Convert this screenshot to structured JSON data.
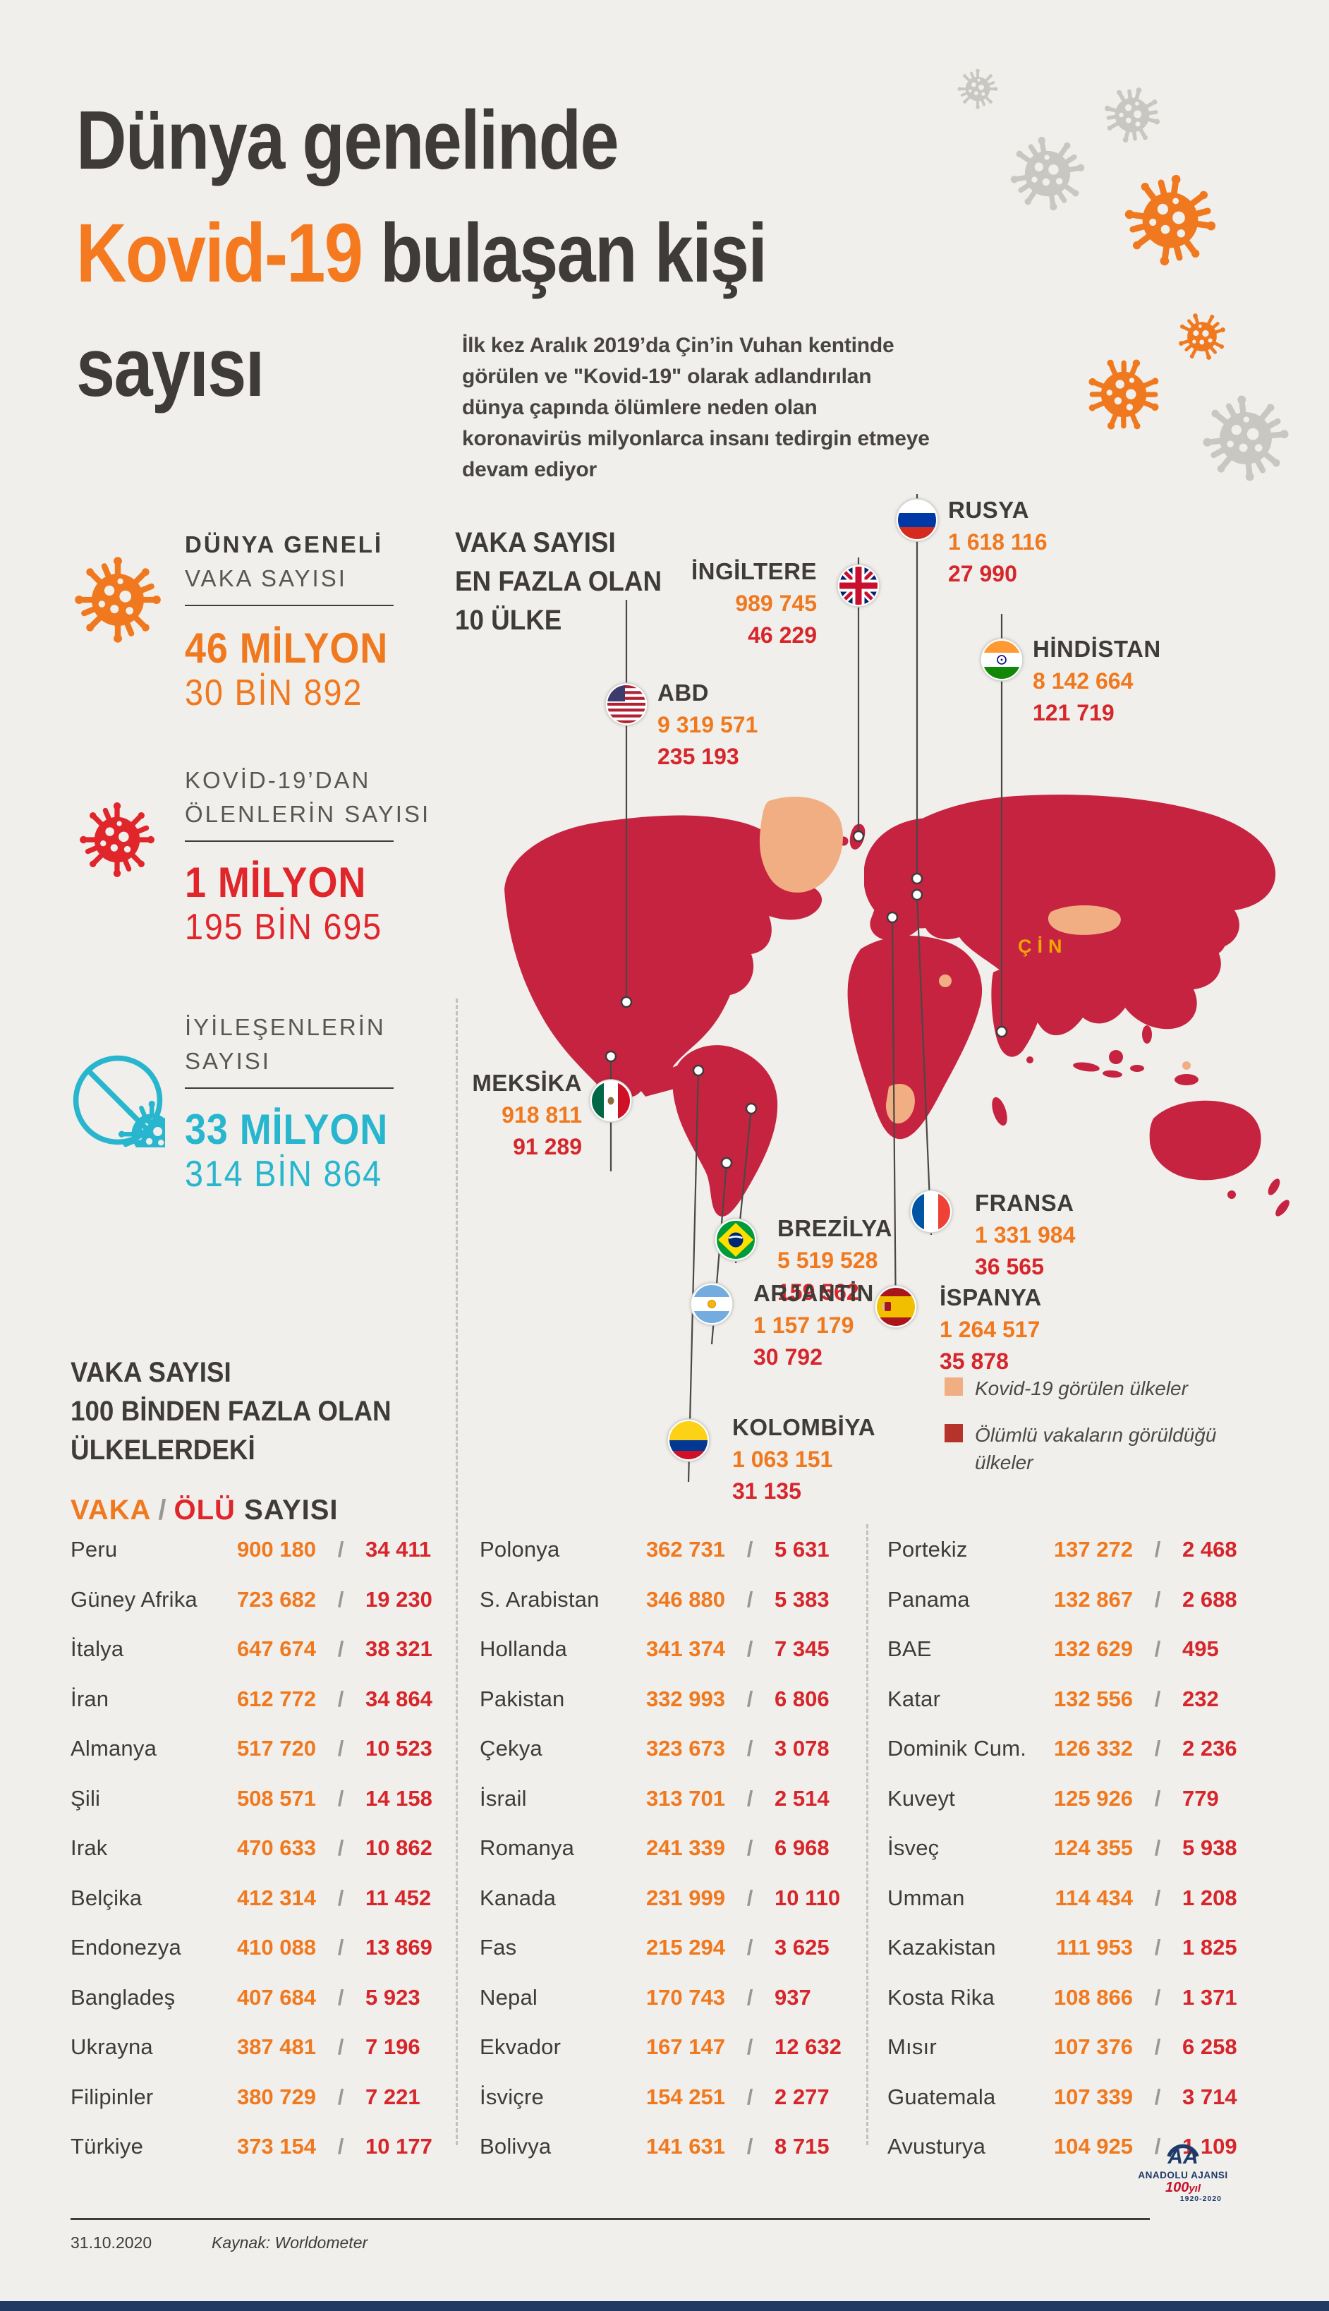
{
  "palette": {
    "background": "#F0EFEB",
    "orange": "#F0791F",
    "red": "#E0252B",
    "deaths_red": "#D6262B",
    "teal": "#27B6CE",
    "map_red": "#C62340",
    "peach": "#F2AE83",
    "legend_dark_red": "#B5332A",
    "navy": "#1E3A68",
    "dark_text": "#3E3B39"
  },
  "header": {
    "title_line1": "Dünya genelinde",
    "title_highlight": "Kovid-19",
    "title_rest": " bulaşan kişi",
    "title_line3": "sayısı",
    "intro": "İlk kez Aralık 2019’da Çin’in Vuhan kentinde görülen ve \"Kovid-19\" olarak adlandırılan dünya çapında ölümlere neden olan koronavirüs milyonlarca insanı tedirgin etmeye devam ediyor"
  },
  "stats": {
    "cases": {
      "label_line1": "DÜNYA GENELİ",
      "label_line2": "VAKA SAYISI",
      "value_major": "46 MİLYON",
      "value_minor": "30 BİN 892"
    },
    "deaths": {
      "label_line1": "KOVİD-19’DAN",
      "label_line2": "ÖLENLERİN SAYISI",
      "value_major": "1 MİLYON",
      "value_minor": "195 BİN 695"
    },
    "recovered": {
      "label_line1": "İYİLEŞENLERİN",
      "label_line2": "SAYISI",
      "value_major": "33 MİLYON",
      "value_minor": "314 BİN 864"
    }
  },
  "map": {
    "heading_line1": "VAKA SAYISI",
    "heading_line2": "EN FAZLA OLAN",
    "heading_line3": "10 ÜLKE",
    "china_label": "ÇİN",
    "legend": {
      "seen": "Kovid-19 görülen ülkeler",
      "deadly": "Ölümlü vakaların görüldüğü ülkeler"
    },
    "countries": [
      {
        "name": "ABD",
        "cases": "9 319 571",
        "deaths": "235 193"
      },
      {
        "name": "İNGİLTERE",
        "cases": "989 745",
        "deaths": "46 229"
      },
      {
        "name": "RUSYA",
        "cases": "1 618 116",
        "deaths": "27 990"
      },
      {
        "name": "HİNDİSTAN",
        "cases": "8 142 664",
        "deaths": "121 719"
      },
      {
        "name": "MEKSİKA",
        "cases": "918 811",
        "deaths": "91 289"
      },
      {
        "name": "BREZİLYA",
        "cases": "5 519 528",
        "deaths": "159 562"
      },
      {
        "name": "FRANSA",
        "cases": "1 331 984",
        "deaths": "36 565"
      },
      {
        "name": "ARJANTİN",
        "cases": "1 157 179",
        "deaths": "30 792"
      },
      {
        "name": "İSPANYA",
        "cases": "1 264 517",
        "deaths": "35 878"
      },
      {
        "name": "KOLOMBİYA",
        "cases": "1 063 151",
        "deaths": "31 135"
      }
    ]
  },
  "table": {
    "heading_line1": "VAKA SAYISI",
    "heading_line2": "100 BİNDEN FAZLA OLAN",
    "heading_line3": "ÜLKELERDEKİ",
    "legend": {
      "cases": "VAKA",
      "sep": "/",
      "deaths": "ÖLÜ",
      "suffix": "SAYISI"
    },
    "slash": "/",
    "columns": [
      [
        {
          "country": "Peru",
          "cases": "900 180",
          "deaths": "34 411"
        },
        {
          "country": "Güney Afrika",
          "cases": "723 682",
          "deaths": "19 230"
        },
        {
          "country": "İtalya",
          "cases": "647 674",
          "deaths": "38 321"
        },
        {
          "country": "İran",
          "cases": "612 772",
          "deaths": "34 864"
        },
        {
          "country": "Almanya",
          "cases": "517 720",
          "deaths": "10 523"
        },
        {
          "country": "Şili",
          "cases": "508 571",
          "deaths": "14 158"
        },
        {
          "country": "Irak",
          "cases": "470 633",
          "deaths": "10 862"
        },
        {
          "country": "Belçika",
          "cases": "412 314",
          "deaths": "11 452"
        },
        {
          "country": "Endonezya",
          "cases": "410 088",
          "deaths": "13 869"
        },
        {
          "country": "Bangladeş",
          "cases": "407 684",
          "deaths": "5 923"
        },
        {
          "country": "Ukrayna",
          "cases": "387 481",
          "deaths": "7 196"
        },
        {
          "country": "Filipinler",
          "cases": "380 729",
          "deaths": "7 221"
        },
        {
          "country": "Türkiye",
          "cases": "373 154",
          "deaths": "10 177"
        }
      ],
      [
        {
          "country": "Polonya",
          "cases": "362 731",
          "deaths": "5 631"
        },
        {
          "country": "S. Arabistan",
          "cases": "346 880",
          "deaths": "5 383"
        },
        {
          "country": "Hollanda",
          "cases": "341 374",
          "deaths": "7 345"
        },
        {
          "country": "Pakistan",
          "cases": "332 993",
          "deaths": "6 806"
        },
        {
          "country": "Çekya",
          "cases": "323 673",
          "deaths": "3 078"
        },
        {
          "country": "İsrail",
          "cases": "313 701",
          "deaths": "2 514"
        },
        {
          "country": "Romanya",
          "cases": "241 339",
          "deaths": "6 968"
        },
        {
          "country": "Kanada",
          "cases": "231 999",
          "deaths": "10 110"
        },
        {
          "country": "Fas",
          "cases": "215 294",
          "deaths": "3 625"
        },
        {
          "country": "Nepal",
          "cases": "170 743",
          "deaths": "937"
        },
        {
          "country": "Ekvador",
          "cases": "167 147",
          "deaths": "12 632"
        },
        {
          "country": "İsviçre",
          "cases": "154 251",
          "deaths": "2 277"
        },
        {
          "country": "Bolivya",
          "cases": "141 631",
          "deaths": "8 715"
        }
      ],
      [
        {
          "country": "Portekiz",
          "cases": "137 272",
          "deaths": "2 468"
        },
        {
          "country": "Panama",
          "cases": "132 867",
          "deaths": "2 688"
        },
        {
          "country": "BAE",
          "cases": "132 629",
          "deaths": "495"
        },
        {
          "country": "Katar",
          "cases": "132 556",
          "deaths": "232"
        },
        {
          "country": "Dominik Cum.",
          "cases": "126 332",
          "deaths": "2 236"
        },
        {
          "country": "Kuveyt",
          "cases": "125 926",
          "deaths": "779"
        },
        {
          "country": "İsveç",
          "cases": "124 355",
          "deaths": "5 938"
        },
        {
          "country": "Umman",
          "cases": "114 434",
          "deaths": "1 208"
        },
        {
          "country": "Kazakistan",
          "cases": "111 953",
          "deaths": "1 825"
        },
        {
          "country": "Kosta Rika",
          "cases": "108 866",
          "deaths": "1 371"
        },
        {
          "country": "Mısır",
          "cases": "107 376",
          "deaths": "6 258"
        },
        {
          "country": "Guatemala",
          "cases": "107 339",
          "deaths": "3 714"
        },
        {
          "country": "Avusturya",
          "cases": "104 925",
          "deaths": "1 109"
        }
      ]
    ]
  },
  "footer": {
    "date": "31.10.2020",
    "source": "Kaynak: Worldometer",
    "agency": "ANADOLU AJANSI",
    "centennial": "100",
    "centennial_suffix": "yıl",
    "years": "1920-2020"
  },
  "chart_data": {
    "type": "table",
    "title": "Dünya genelinde Kovid-19 bulaşan kişi sayısı",
    "date": "31.10.2020",
    "source": "Worldometer",
    "totals": {
      "cases": 46030892,
      "deaths": 1195695,
      "recovered": 33314864
    },
    "top10_countries": [
      {
        "country": "ABD",
        "cases": 9319571,
        "deaths": 235193
      },
      {
        "country": "Hindistan",
        "cases": 8142664,
        "deaths": 121719
      },
      {
        "country": "Brezilya",
        "cases": 5519528,
        "deaths": 159562
      },
      {
        "country": "Rusya",
        "cases": 1618116,
        "deaths": 27990
      },
      {
        "country": "Fransa",
        "cases": 1331984,
        "deaths": 36565
      },
      {
        "country": "İspanya",
        "cases": 1264517,
        "deaths": 35878
      },
      {
        "country": "Arjantin",
        "cases": 1157179,
        "deaths": 30792
      },
      {
        "country": "Kolombiya",
        "cases": 1063151,
        "deaths": 31135
      },
      {
        "country": "İngiltere",
        "cases": 989745,
        "deaths": 46229
      },
      {
        "country": "Meksika",
        "cases": 918811,
        "deaths": 91289
      }
    ],
    "countries_over_100k": [
      {
        "country": "Peru",
        "cases": 900180,
        "deaths": 34411
      },
      {
        "country": "Güney Afrika",
        "cases": 723682,
        "deaths": 19230
      },
      {
        "country": "İtalya",
        "cases": 647674,
        "deaths": 38321
      },
      {
        "country": "İran",
        "cases": 612772,
        "deaths": 34864
      },
      {
        "country": "Almanya",
        "cases": 517720,
        "deaths": 10523
      },
      {
        "country": "Şili",
        "cases": 508571,
        "deaths": 14158
      },
      {
        "country": "Irak",
        "cases": 470633,
        "deaths": 10862
      },
      {
        "country": "Belçika",
        "cases": 412314,
        "deaths": 11452
      },
      {
        "country": "Endonezya",
        "cases": 410088,
        "deaths": 13869
      },
      {
        "country": "Bangladeş",
        "cases": 407684,
        "deaths": 5923
      },
      {
        "country": "Ukrayna",
        "cases": 387481,
        "deaths": 7196
      },
      {
        "country": "Filipinler",
        "cases": 380729,
        "deaths": 7221
      },
      {
        "country": "Türkiye",
        "cases": 373154,
        "deaths": 10177
      },
      {
        "country": "Polonya",
        "cases": 362731,
        "deaths": 5631
      },
      {
        "country": "S. Arabistan",
        "cases": 346880,
        "deaths": 5383
      },
      {
        "country": "Hollanda",
        "cases": 341374,
        "deaths": 7345
      },
      {
        "country": "Pakistan",
        "cases": 332993,
        "deaths": 6806
      },
      {
        "country": "Çekya",
        "cases": 323673,
        "deaths": 3078
      },
      {
        "country": "İsrail",
        "cases": 313701,
        "deaths": 2514
      },
      {
        "country": "Romanya",
        "cases": 241339,
        "deaths": 6968
      },
      {
        "country": "Kanada",
        "cases": 231999,
        "deaths": 10110
      },
      {
        "country": "Fas",
        "cases": 215294,
        "deaths": 3625
      },
      {
        "country": "Nepal",
        "cases": 170743,
        "deaths": 937
      },
      {
        "country": "Ekvador",
        "cases": 167147,
        "deaths": 12632
      },
      {
        "country": "İsviçre",
        "cases": 154251,
        "deaths": 2277
      },
      {
        "country": "Bolivya",
        "cases": 141631,
        "deaths": 8715
      },
      {
        "country": "Portekiz",
        "cases": 137272,
        "deaths": 2468
      },
      {
        "country": "Panama",
        "cases": 132867,
        "deaths": 2688
      },
      {
        "country": "BAE",
        "cases": 132629,
        "deaths": 495
      },
      {
        "country": "Katar",
        "cases": 132556,
        "deaths": 232
      },
      {
        "country": "Dominik Cum.",
        "cases": 126332,
        "deaths": 2236
      },
      {
        "country": "Kuveyt",
        "cases": 125926,
        "deaths": 779
      },
      {
        "country": "İsveç",
        "cases": 124355,
        "deaths": 5938
      },
      {
        "country": "Umman",
        "cases": 114434,
        "deaths": 1208
      },
      {
        "country": "Kazakistan",
        "cases": 111953,
        "deaths": 1825
      },
      {
        "country": "Kosta Rika",
        "cases": 108866,
        "deaths": 1371
      },
      {
        "country": "Mısır",
        "cases": 107376,
        "deaths": 6258
      },
      {
        "country": "Guatemala",
        "cases": 107339,
        "deaths": 3714
      },
      {
        "country": "Avusturya",
        "cases": 104925,
        "deaths": 1109
      }
    ]
  }
}
